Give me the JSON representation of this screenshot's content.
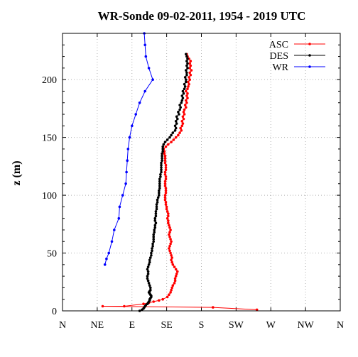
{
  "chart_data": {
    "type": "line",
    "title": "WR-Sonde 09-02-2011, 1954 - 2019 UTC",
    "xlabel": "",
    "ylabel": "z (m)",
    "xlim": [
      0,
      360
    ],
    "ylim": [
      0,
      240
    ],
    "xtick_values": [
      0,
      45,
      90,
      135,
      180,
      225,
      270,
      315,
      360
    ],
    "xticks": [
      "N",
      "NE",
      "E",
      "SE",
      "S",
      "SW",
      "W",
      "NW",
      "N"
    ],
    "yticks": [
      0,
      50,
      100,
      150,
      200
    ],
    "grid": true,
    "legend_position": "top-right",
    "series": [
      {
        "name": "ASC",
        "color": "#ff0000",
        "points": [
          [
            252,
            1
          ],
          [
            195,
            3
          ],
          [
            52,
            4
          ],
          [
            80,
            4
          ],
          [
            105,
            6
          ],
          [
            112,
            7
          ],
          [
            118,
            8
          ],
          [
            125,
            9
          ],
          [
            130,
            10
          ],
          [
            136,
            12
          ],
          [
            138,
            14
          ],
          [
            140,
            16
          ],
          [
            141,
            18
          ],
          [
            142,
            20
          ],
          [
            143,
            22
          ],
          [
            145,
            24
          ],
          [
            146,
            26
          ],
          [
            146,
            28
          ],
          [
            147,
            30
          ],
          [
            148,
            32
          ],
          [
            149,
            34
          ],
          [
            147,
            36
          ],
          [
            145,
            38
          ],
          [
            143,
            40
          ],
          [
            142,
            42
          ],
          [
            141,
            44
          ],
          [
            142,
            46
          ],
          [
            141,
            48
          ],
          [
            140,
            50
          ],
          [
            139,
            52
          ],
          [
            138,
            54
          ],
          [
            139,
            56
          ],
          [
            140,
            58
          ],
          [
            141,
            60
          ],
          [
            140,
            62
          ],
          [
            139,
            64
          ],
          [
            138,
            66
          ],
          [
            139,
            68
          ],
          [
            140,
            70
          ],
          [
            139,
            72
          ],
          [
            138,
            74
          ],
          [
            137,
            76
          ],
          [
            137,
            78
          ],
          [
            136,
            80
          ],
          [
            137,
            82
          ],
          [
            137,
            84
          ],
          [
            136,
            86
          ],
          [
            135,
            88
          ],
          [
            135,
            90
          ],
          [
            134,
            92
          ],
          [
            134,
            94
          ],
          [
            133,
            96
          ],
          [
            133,
            98
          ],
          [
            133,
            100
          ],
          [
            134,
            102
          ],
          [
            134,
            104
          ],
          [
            134,
            106
          ],
          [
            133,
            108
          ],
          [
            133,
            110
          ],
          [
            133,
            112
          ],
          [
            134,
            114
          ],
          [
            134,
            116
          ],
          [
            133,
            118
          ],
          [
            133,
            120
          ],
          [
            134,
            122
          ],
          [
            134,
            124
          ],
          [
            134,
            126
          ],
          [
            133,
            128
          ],
          [
            133,
            130
          ],
          [
            133,
            132
          ],
          [
            133,
            134
          ],
          [
            132,
            136
          ],
          [
            132,
            138
          ],
          [
            131,
            140
          ],
          [
            134,
            142
          ],
          [
            137,
            144
          ],
          [
            141,
            146
          ],
          [
            144,
            148
          ],
          [
            147,
            150
          ],
          [
            150,
            152
          ],
          [
            152,
            154
          ],
          [
            154,
            156
          ],
          [
            153,
            158
          ],
          [
            155,
            160
          ],
          [
            156,
            162
          ],
          [
            155,
            164
          ],
          [
            157,
            166
          ],
          [
            156,
            168
          ],
          [
            158,
            170
          ],
          [
            157,
            172
          ],
          [
            158,
            174
          ],
          [
            160,
            176
          ],
          [
            159,
            178
          ],
          [
            161,
            180
          ],
          [
            160,
            182
          ],
          [
            162,
            184
          ],
          [
            161,
            186
          ],
          [
            162,
            188
          ],
          [
            160,
            190
          ],
          [
            162,
            192
          ],
          [
            163,
            194
          ],
          [
            164,
            196
          ],
          [
            163,
            198
          ],
          [
            165,
            200
          ],
          [
            164,
            202
          ],
          [
            166,
            204
          ],
          [
            165,
            206
          ],
          [
            167,
            208
          ],
          [
            165,
            210
          ],
          [
            166,
            212
          ],
          [
            165,
            214
          ],
          [
            166,
            216
          ],
          [
            164,
            218
          ],
          [
            162,
            220
          ],
          [
            161,
            222
          ]
        ]
      },
      {
        "name": "DES",
        "color": "#000000",
        "points": [
          [
            100,
            0
          ],
          [
            103,
            1
          ],
          [
            105,
            2
          ],
          [
            106,
            3
          ],
          [
            107,
            4
          ],
          [
            108,
            5
          ],
          [
            110,
            6
          ],
          [
            111,
            7
          ],
          [
            112,
            8
          ],
          [
            113,
            9
          ],
          [
            113,
            10
          ],
          [
            114,
            11
          ],
          [
            115,
            12
          ],
          [
            115,
            13
          ],
          [
            114,
            14
          ],
          [
            113,
            15
          ],
          [
            112,
            16
          ],
          [
            113,
            17
          ],
          [
            114,
            18
          ],
          [
            114,
            20
          ],
          [
            113,
            22
          ],
          [
            112,
            24
          ],
          [
            111,
            26
          ],
          [
            110,
            28
          ],
          [
            110,
            30
          ],
          [
            111,
            32
          ],
          [
            111,
            34
          ],
          [
            110,
            36
          ],
          [
            111,
            38
          ],
          [
            112,
            40
          ],
          [
            113,
            42
          ],
          [
            113,
            44
          ],
          [
            114,
            46
          ],
          [
            115,
            48
          ],
          [
            115,
            50
          ],
          [
            116,
            52
          ],
          [
            116,
            54
          ],
          [
            117,
            56
          ],
          [
            117,
            58
          ],
          [
            118,
            60
          ],
          [
            118,
            62
          ],
          [
            118,
            64
          ],
          [
            118,
            66
          ],
          [
            119,
            68
          ],
          [
            119,
            70
          ],
          [
            120,
            72
          ],
          [
            120,
            74
          ],
          [
            121,
            76
          ],
          [
            120,
            78
          ],
          [
            120,
            80
          ],
          [
            121,
            82
          ],
          [
            121,
            84
          ],
          [
            121,
            86
          ],
          [
            122,
            88
          ],
          [
            122,
            90
          ],
          [
            122,
            92
          ],
          [
            123,
            94
          ],
          [
            123,
            96
          ],
          [
            124,
            98
          ],
          [
            125,
            100
          ],
          [
            125,
            102
          ],
          [
            125,
            104
          ],
          [
            126,
            106
          ],
          [
            126,
            108
          ],
          [
            126,
            110
          ],
          [
            126,
            112
          ],
          [
            126,
            114
          ],
          [
            127,
            116
          ],
          [
            127,
            118
          ],
          [
            128,
            120
          ],
          [
            128,
            122
          ],
          [
            128,
            124
          ],
          [
            128,
            126
          ],
          [
            128,
            128
          ],
          [
            129,
            130
          ],
          [
            129,
            132
          ],
          [
            129,
            134
          ],
          [
            129,
            136
          ],
          [
            130,
            138
          ],
          [
            130,
            140
          ],
          [
            130,
            142
          ],
          [
            131,
            144
          ],
          [
            133,
            146
          ],
          [
            136,
            148
          ],
          [
            139,
            150
          ],
          [
            141,
            152
          ],
          [
            143,
            154
          ],
          [
            146,
            156
          ],
          [
            147,
            158
          ],
          [
            146,
            160
          ],
          [
            148,
            162
          ],
          [
            147,
            164
          ],
          [
            149,
            166
          ],
          [
            148,
            168
          ],
          [
            151,
            170
          ],
          [
            150,
            172
          ],
          [
            152,
            174
          ],
          [
            153,
            176
          ],
          [
            152,
            178
          ],
          [
            154,
            180
          ],
          [
            155,
            182
          ],
          [
            156,
            184
          ],
          [
            155,
            186
          ],
          [
            157,
            188
          ],
          [
            156,
            190
          ],
          [
            158,
            192
          ],
          [
            159,
            194
          ],
          [
            158,
            196
          ],
          [
            160,
            198
          ],
          [
            160,
            200
          ],
          [
            159,
            202
          ],
          [
            161,
            204
          ],
          [
            161,
            206
          ],
          [
            160,
            208
          ],
          [
            162,
            210
          ],
          [
            161,
            212
          ],
          [
            162,
            214
          ],
          [
            161,
            216
          ],
          [
            162,
            218
          ],
          [
            161,
            220
          ],
          [
            160,
            222
          ]
        ]
      },
      {
        "name": "WR",
        "color": "#0000ff",
        "points": [
          [
            55,
            40
          ],
          [
            57,
            45
          ],
          [
            60,
            50
          ],
          [
            64,
            60
          ],
          [
            67,
            70
          ],
          [
            73,
            80
          ],
          [
            74,
            90
          ],
          [
            78,
            100
          ],
          [
            82,
            110
          ],
          [
            83,
            120
          ],
          [
            84,
            130
          ],
          [
            85,
            140
          ],
          [
            87,
            150
          ],
          [
            90,
            160
          ],
          [
            95,
            170
          ],
          [
            100,
            180
          ],
          [
            107,
            190
          ],
          [
            117,
            200
          ],
          [
            112,
            210
          ],
          [
            108,
            220
          ],
          [
            107,
            230
          ],
          [
            106,
            240
          ]
        ]
      }
    ]
  }
}
